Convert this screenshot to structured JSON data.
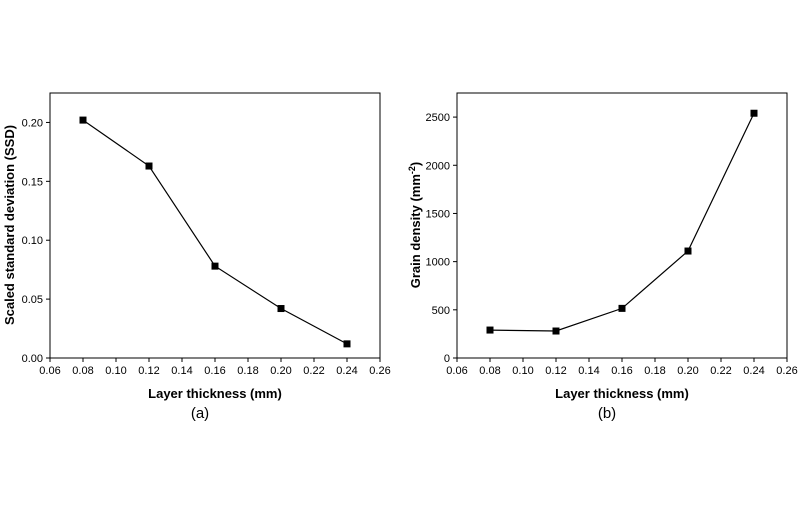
{
  "chart_data": [
    {
      "type": "line",
      "panel_label": "(a)",
      "xlabel": "Layer thickness (mm)",
      "ylabel": "Scaled standard deviation (SSD)",
      "xlim": [
        0.06,
        0.26
      ],
      "ylim": [
        0.0,
        0.225
      ],
      "xticks": [
        "0.06",
        "0.08",
        "0.10",
        "0.12",
        "0.14",
        "0.16",
        "0.18",
        "0.20",
        "0.22",
        "0.24",
        "0.26"
      ],
      "yticks": [
        "0.00",
        "0.05",
        "0.10",
        "0.15",
        "0.20"
      ],
      "x": [
        0.08,
        0.12,
        0.16,
        0.2,
        0.24
      ],
      "y": [
        0.202,
        0.163,
        0.078,
        0.042,
        0.012
      ],
      "grid": false,
      "marker": "square",
      "color": "#000000"
    },
    {
      "type": "line",
      "panel_label": "(b)",
      "xlabel": "Layer thickness (mm)",
      "ylabel": "Grain density (mm",
      "ylabel_sup": "-2",
      "ylabel_tail": ")",
      "xlim": [
        0.06,
        0.26
      ],
      "ylim": [
        0,
        2750
      ],
      "xticks": [
        "0.06",
        "0.08",
        "0.10",
        "0.12",
        "0.14",
        "0.16",
        "0.18",
        "0.20",
        "0.22",
        "0.24",
        "0.26"
      ],
      "yticks": [
        "0",
        "500",
        "1000",
        "1500",
        "2000",
        "2500"
      ],
      "x": [
        0.08,
        0.12,
        0.16,
        0.2,
        0.24
      ],
      "y": [
        290,
        280,
        515,
        1110,
        2540
      ],
      "grid": false,
      "marker": "square",
      "color": "#000000"
    }
  ]
}
